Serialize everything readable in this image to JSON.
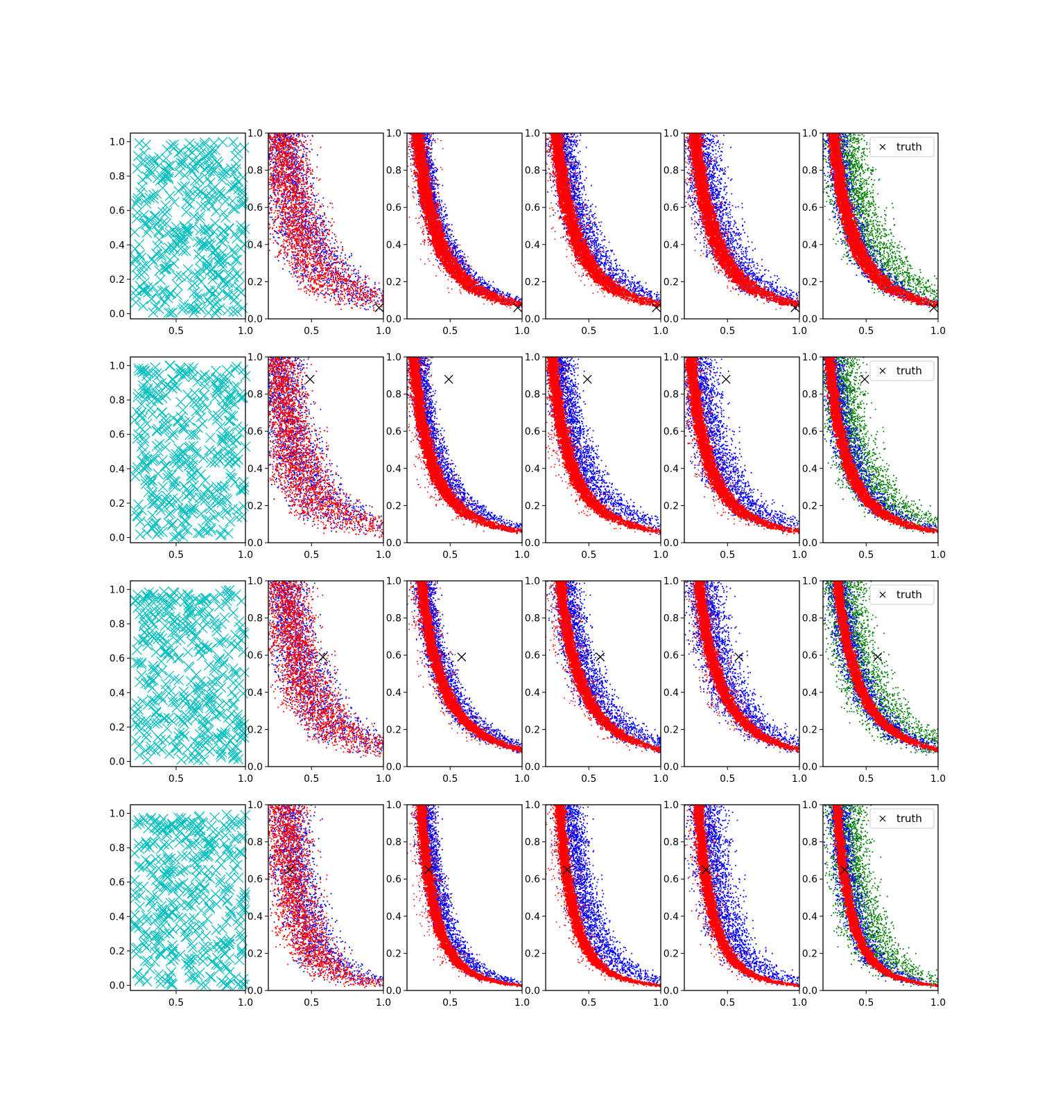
{
  "figure": {
    "rows": 4,
    "columns": 6,
    "colors": {
      "samples": "#00bfbf",
      "primary": "#0000ff",
      "secondary": "#ff0000",
      "tertiary": "#008000",
      "truth": "#000000",
      "axes": "#000000"
    }
  },
  "chart_data": [
    {
      "type": "scatter",
      "position": "row1-col1",
      "marker": "x",
      "xlim": [
        0.17,
        1.0
      ],
      "ylim": [
        -0.03,
        1.05
      ],
      "xticks": [
        "0.5",
        "1.0"
      ],
      "yticks": [
        "0.0",
        "0.2",
        "0.4",
        "0.6",
        "0.8",
        "1.0"
      ],
      "n_points": 400,
      "distribution": "uniform over x 0.2-1.0, y 0.0-1.0"
    },
    {
      "type": "scatter",
      "position": "row1-cols2-6",
      "xlim": [
        0.2,
        1.0
      ],
      "ylim": [
        0.0,
        1.0
      ],
      "xticks": [
        "0.5",
        "1.0"
      ],
      "yticks": [
        "0.0",
        "0.2",
        "0.4",
        "0.6",
        "0.8",
        "1.0"
      ],
      "truth": {
        "x": 0.97,
        "y": 0.06
      },
      "legend": {
        "label": "truth",
        "location": "upper right",
        "on_panel": 6
      },
      "series_trend": "points lie along a decreasing curve y ~ k/x^2, k ~ 0.05-0.09"
    },
    {
      "type": "scatter",
      "position": "row2-col1",
      "marker": "x",
      "xlim": [
        0.17,
        1.0
      ],
      "ylim": [
        -0.03,
        1.05
      ],
      "xticks": [
        "0.5",
        "1.0"
      ],
      "yticks": [
        "0.0",
        "0.2",
        "0.4",
        "0.6",
        "0.8",
        "1.0"
      ],
      "n_points": 400
    },
    {
      "type": "scatter",
      "position": "row2-cols2-6",
      "xlim": [
        0.2,
        1.0
      ],
      "ylim": [
        0.0,
        1.0
      ],
      "xticks": [
        "0.5",
        "1.0"
      ],
      "yticks": [
        "0.0",
        "0.2",
        "0.4",
        "0.6",
        "0.8",
        "1.0"
      ],
      "truth": {
        "x": 0.49,
        "y": 0.88
      },
      "legend": {
        "label": "truth",
        "location": "upper right",
        "on_panel": 6
      },
      "series_trend": "points lie along a decreasing curve y ~ k/x^2, k ~ 0.05-0.09"
    },
    {
      "type": "scatter",
      "position": "row3-col1",
      "marker": "x",
      "xlim": [
        0.17,
        1.0
      ],
      "ylim": [
        -0.03,
        1.05
      ],
      "xticks": [
        "0.5",
        "1.0"
      ],
      "yticks": [
        "0.0",
        "0.2",
        "0.4",
        "0.6",
        "0.8",
        "1.0"
      ],
      "n_points": 400
    },
    {
      "type": "scatter",
      "position": "row3-cols2-6",
      "xlim": [
        0.2,
        1.0
      ],
      "ylim": [
        0.0,
        1.0
      ],
      "xticks": [
        "0.5",
        "1.0"
      ],
      "yticks": [
        "0.0",
        "0.2",
        "0.4",
        "0.6",
        "0.8",
        "1.0"
      ],
      "truth": {
        "x": 0.58,
        "y": 0.59
      },
      "legend": {
        "label": "truth",
        "location": "upper right",
        "on_panel": 6
      },
      "series_trend": "points lie along a decreasing curve y ~ k/x^2, k ~ 0.07-0.12"
    },
    {
      "type": "scatter",
      "position": "row4-col1",
      "marker": "x",
      "xlim": [
        0.17,
        1.0
      ],
      "ylim": [
        -0.03,
        1.05
      ],
      "xticks": [
        "0.5",
        "1.0"
      ],
      "yticks": [
        "0.0",
        "0.2",
        "0.4",
        "0.6",
        "0.8",
        "1.0"
      ],
      "n_points": 400
    },
    {
      "type": "scatter",
      "position": "row4-cols2-6",
      "xlim": [
        0.2,
        1.0
      ],
      "ylim": [
        0.0,
        1.0
      ],
      "xticks": [
        "0.5",
        "1.0"
      ],
      "yticks": [
        "0.0",
        "0.2",
        "0.4",
        "0.6",
        "0.8",
        "1.0"
      ],
      "truth": {
        "x": 0.35,
        "y": 0.65
      },
      "legend": {
        "label": "truth",
        "location": "upper right",
        "on_panel": 6
      },
      "series_trend": "points lie along a decreasing curve y ~ k/x^3, k ~ 0.025-0.04"
    }
  ]
}
